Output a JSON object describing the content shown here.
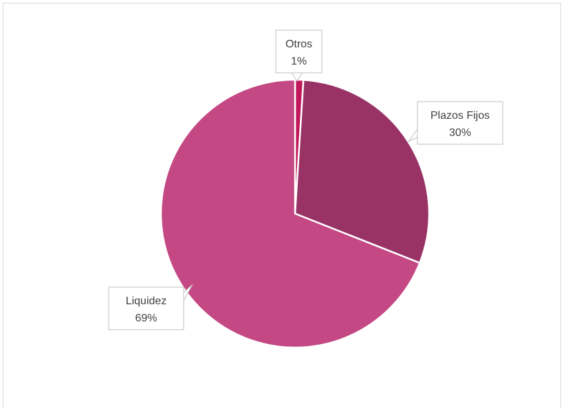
{
  "chart_data": {
    "type": "pie",
    "title": "",
    "slices": [
      {
        "label": "Otros",
        "value": 1,
        "value_label": "1%",
        "color": "#C2185B"
      },
      {
        "label": "Plazos Fijos",
        "value": 30,
        "value_label": "30%",
        "color": "#993366"
      },
      {
        "label": "Liquidez",
        "value": 69,
        "value_label": "69%",
        "color": "#C44884"
      }
    ],
    "start_angle_deg": 0,
    "direction": "clockwise",
    "slice_border_color": "#ffffff",
    "data_labels": "callouts",
    "legend": "none"
  }
}
